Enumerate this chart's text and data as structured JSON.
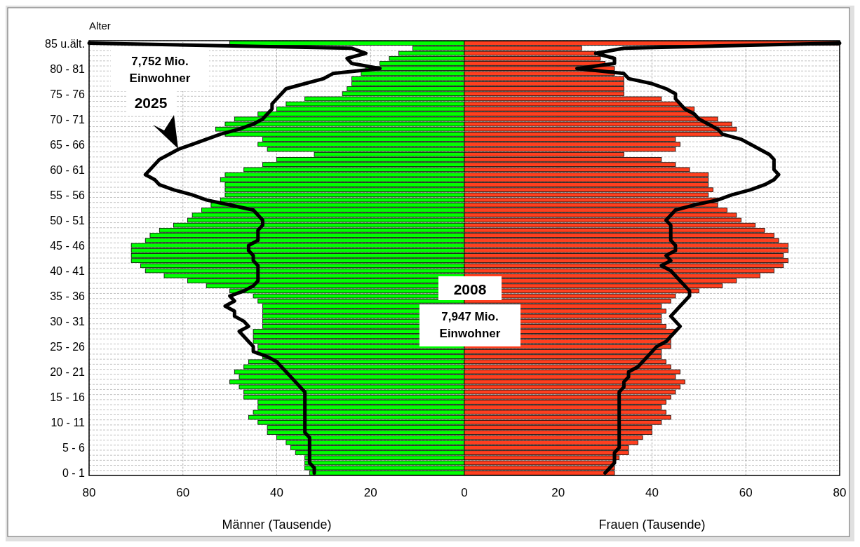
{
  "chart_data": {
    "type": "bar",
    "orientation": "horizontal",
    "ylabel": "Alter",
    "xlabel": "Männer (Tausende)",
    "annotations": [
      "7,752 Mio.\nEinwohner",
      "2025",
      "2008",
      "7,947 Mio.\nEinwohner",
      "Frauen (Tausende)"
    ],
    "categories": [
      "85 u.ält.",
      null,
      null,
      null,
      null,
      "80 - 81",
      null,
      null,
      null,
      null,
      "75 - 76",
      null,
      null,
      null,
      null,
      "70 - 71",
      null,
      null,
      null,
      null,
      "65 - 66",
      null,
      null,
      null,
      null,
      "60 - 61",
      null,
      null,
      null,
      null,
      "55 - 56",
      null,
      null,
      null,
      null,
      "50 - 51",
      null,
      null,
      null,
      null,
      "45 - 46",
      null,
      null,
      null,
      null,
      "40 - 41",
      null,
      null,
      null,
      null,
      "35 - 36",
      null,
      null,
      null,
      null,
      "30 - 31",
      null,
      null,
      null,
      null,
      "25 - 26",
      null,
      null,
      null,
      null,
      "20 - 21",
      null,
      null,
      null,
      null,
      "15 - 16",
      null,
      null,
      null,
      null,
      "10 - 11",
      null,
      null,
      null,
      null,
      "5 - 6",
      null,
      null,
      null,
      null,
      "0 - 1"
    ],
    "series": [
      {
        "color": "#00ff00",
        "values": [
          -50,
          -11,
          -14,
          -16,
          -18,
          -21,
          -22,
          -24,
          -24,
          -25,
          -26,
          -34,
          -38,
          -40,
          -44,
          -49,
          -51,
          -53,
          -51,
          -43,
          -44,
          -42,
          -32,
          -40,
          -43,
          -47,
          -51,
          -52,
          -51,
          -51,
          -51,
          -52,
          -54,
          -56,
          -58,
          -59,
          -62,
          -65,
          -67,
          -68,
          -71,
          -71,
          -71,
          -71,
          -69,
          -68,
          -64,
          -59,
          -55,
          -50,
          -45,
          -44,
          -43,
          -43,
          -43,
          -43,
          -43,
          -45,
          -45,
          -45,
          -44,
          -44,
          -43,
          -46,
          -47,
          -49,
          -48,
          -50,
          -48,
          -47,
          -47,
          -44,
          -44,
          -45,
          -46,
          -44,
          -42,
          -42,
          -40,
          -38,
          -37,
          -36,
          -34,
          -34,
          -34,
          -33
        ]
      },
      {
        "color": "#ff3f1f",
        "values": [
          80,
          25,
          28,
          29,
          30,
          32,
          32,
          34,
          34,
          34,
          34,
          42,
          46,
          49,
          49,
          54,
          57,
          58,
          55,
          45,
          46,
          45,
          34,
          42,
          45,
          48,
          52,
          52,
          52,
          53,
          52,
          54,
          54,
          56,
          58,
          59,
          62,
          64,
          66,
          67,
          69,
          69,
          68,
          69,
          68,
          66,
          63,
          58,
          55,
          50,
          45,
          44,
          42,
          43,
          42,
          42,
          43,
          45,
          44,
          44,
          44,
          42,
          42,
          43,
          44,
          46,
          45,
          47,
          46,
          45,
          44,
          43,
          42,
          43,
          44,
          42,
          40,
          40,
          38,
          37,
          35,
          35,
          33,
          32,
          32,
          32
        ]
      },
      {
        "type": "line",
        "color": "#000000",
        "values": [
          -80,
          -24,
          -21,
          -25,
          -24,
          -18,
          -28,
          -30,
          -34,
          -38,
          -39,
          -40,
          -41,
          -41,
          -42,
          -43,
          -45,
          -48,
          -52,
          -55,
          -58,
          -61,
          -63,
          -65,
          -66,
          -67,
          -68,
          -66,
          -65,
          -62,
          -58,
          -55,
          -50,
          -45,
          -44,
          -43,
          -43,
          -44,
          -44,
          -44,
          -46,
          -46,
          -45,
          -45,
          -44,
          -44,
          -44,
          -44,
          -45,
          -47,
          -50,
          -49,
          -51,
          -49,
          -49,
          -47,
          -46,
          -48,
          -47,
          -46,
          -45,
          -45,
          -42,
          -40,
          -39,
          -38,
          -37,
          -36,
          -35,
          -34,
          -34,
          -34,
          -34,
          -34,
          -34,
          -34,
          -34,
          -34,
          -33,
          -33,
          -33,
          -33,
          -33,
          -33,
          -32,
          -32
        ]
      },
      {
        "type": "line",
        "color": "#000000",
        "values": [
          80,
          34,
          28,
          32,
          32,
          24,
          34,
          35,
          40,
          43,
          45,
          45,
          46,
          47,
          49,
          50,
          52,
          54,
          55,
          59,
          61,
          63,
          65,
          66,
          66,
          66,
          67,
          66,
          64,
          61,
          57,
          54,
          49,
          45,
          44,
          43,
          44,
          44,
          44,
          44,
          45,
          45,
          43,
          44,
          42,
          44,
          45,
          46,
          47,
          48,
          48,
          47,
          46,
          45,
          44,
          45,
          46,
          45,
          44,
          43,
          41,
          40,
          39,
          38,
          37,
          35,
          35,
          34,
          34,
          33,
          33,
          33,
          33,
          33,
          33,
          33,
          33,
          33,
          33,
          33,
          33,
          32,
          32,
          32,
          31,
          30
        ]
      }
    ],
    "xlim": [
      -80,
      80
    ],
    "xticks": [
      {
        "value": -80,
        "label": "80"
      },
      {
        "value": -60,
        "label": "60"
      },
      {
        "value": -40,
        "label": "40"
      },
      {
        "value": -20,
        "label": "20"
      },
      0,
      20,
      40,
      60,
      80
    ],
    "grid": true,
    "stacked": true
  }
}
